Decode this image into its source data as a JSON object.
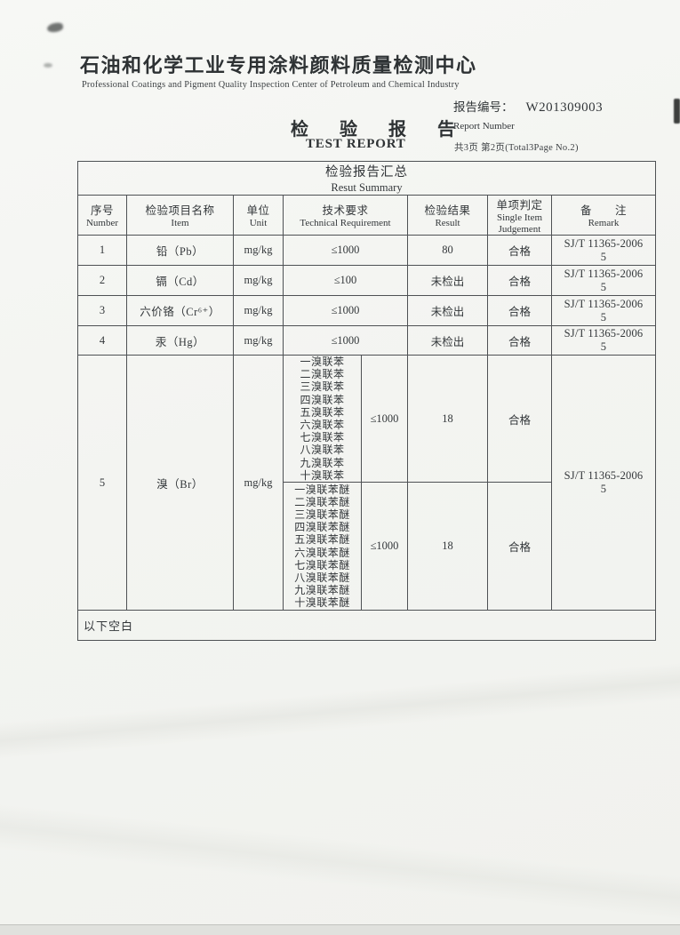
{
  "page": {
    "org_name_cn": "石油和化学工业专用涂料颜料质量检测中心",
    "org_name_en": "Professional Coatings and Pigment Quality Inspection Center of Petroleum and Chemical Industry",
    "report_no_label": "报告编号：",
    "report_no_value": "W201309003",
    "report_no_label_en": "Report Number",
    "page_info": "共3页 第2页(Total3Page No.2)",
    "title_cn": "检 验 报 告",
    "title_en": "TEST REPORT"
  },
  "table": {
    "summary_title_cn": "检验报告汇总",
    "summary_title_en": "Resut Summary",
    "headers": {
      "no_cn": "序号",
      "no_en": "Number",
      "item_cn": "检验项目名称",
      "item_en": "Item",
      "unit_cn": "单位",
      "unit_en": "Unit",
      "req_cn": "技术要求",
      "req_en": "Technical Requirement",
      "result_cn": "检验结果",
      "result_en": "Result",
      "judge_cn": "单项判定",
      "judge_en1": "Single Item",
      "judge_en2": "Judgement",
      "remark_cn": "备　　注",
      "remark_en": "Remark"
    },
    "rows": [
      {
        "no": "1",
        "item": "铅（Pb）",
        "unit": "mg/kg",
        "req": "≤1000",
        "result": "80",
        "judge": "合格",
        "remark1": "SJ/T 11365-2006",
        "remark2": "5"
      },
      {
        "no": "2",
        "item": "镉（Cd）",
        "unit": "mg/kg",
        "req": "≤100",
        "result": "未检出",
        "judge": "合格",
        "remark1": "SJ/T 11365-2006",
        "remark2": "5"
      },
      {
        "no": "3",
        "item": "六价铬（Cr⁶⁺）",
        "unit": "mg/kg",
        "req": "≤1000",
        "result": "未检出",
        "judge": "合格",
        "remark1": "SJ/T 11365-2006",
        "remark2": "5"
      },
      {
        "no": "4",
        "item": "汞（Hg）",
        "unit": "mg/kg",
        "req": "≤1000",
        "result": "未检出",
        "judge": "合格",
        "remark1": "SJ/T 11365-2006",
        "remark2": "5"
      }
    ],
    "row5": {
      "no": "5",
      "item": "溴（Br）",
      "unit": "mg/kg",
      "group_a": {
        "compounds": [
          "一溴联苯",
          "二溴联苯",
          "三溴联苯",
          "四溴联苯",
          "五溴联苯",
          "六溴联苯",
          "七溴联苯",
          "八溴联苯",
          "九溴联苯",
          "十溴联苯"
        ],
        "req": "≤1000",
        "result": "18",
        "judge": "合格"
      },
      "group_b": {
        "compounds": [
          "一溴联苯醚",
          "二溴联苯醚",
          "三溴联苯醚",
          "四溴联苯醚",
          "五溴联苯醚",
          "六溴联苯醚",
          "七溴联苯醚",
          "八溴联苯醚",
          "九溴联苯醚",
          "十溴联苯醚"
        ],
        "req": "≤1000",
        "result": "18",
        "judge": "合格"
      },
      "remark1": "SJ/T 11365-2006",
      "remark2": "5"
    },
    "footer_note": "以下空白"
  }
}
